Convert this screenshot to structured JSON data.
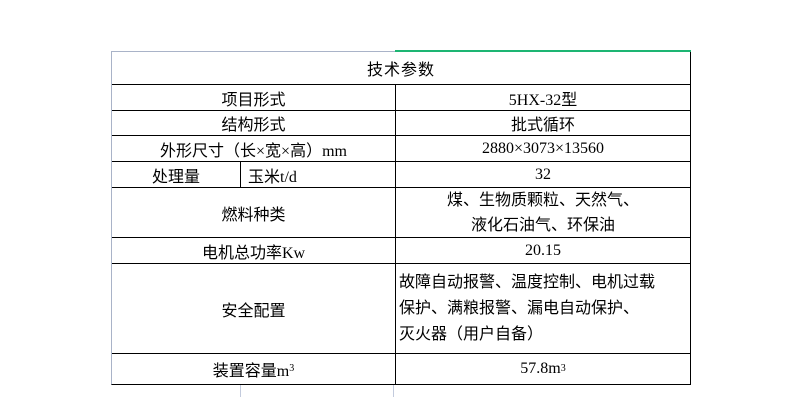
{
  "colors": {
    "accent_green": "#1db573",
    "outer_border_gray": "#a9b3c8",
    "grid_line": "#000000",
    "gridline_stub": "#c3cbdd",
    "background": "#ffffff"
  },
  "table": {
    "title": "技术参数",
    "rows": [
      {
        "label": "项目形式",
        "value": "5HX-32型"
      },
      {
        "label": "结构形式",
        "value": "批式循环"
      },
      {
        "label": "外形尺寸（长×宽×高）mm",
        "value": "2880×3073×13560"
      },
      {
        "label": "处理量",
        "sublabel": "玉米t/d",
        "value": "32"
      },
      {
        "label": "燃料种类",
        "value_line1": "煤、生物质颗粒、天然气、",
        "value_line2": "液化石油气、环保油"
      },
      {
        "label": "电机总功率Kw",
        "value": "20.15"
      },
      {
        "label": "安全配置",
        "value_line1": "故障自动报警、温度控制、电机过载",
        "value_line2": "保护、满粮报警、漏电自动保护、",
        "value_line3": "灭火器（用户自备）"
      },
      {
        "label_base": "装置容量m",
        "label_sup": "3",
        "value_base": "57.8m",
        "value_sup": "3"
      }
    ]
  }
}
